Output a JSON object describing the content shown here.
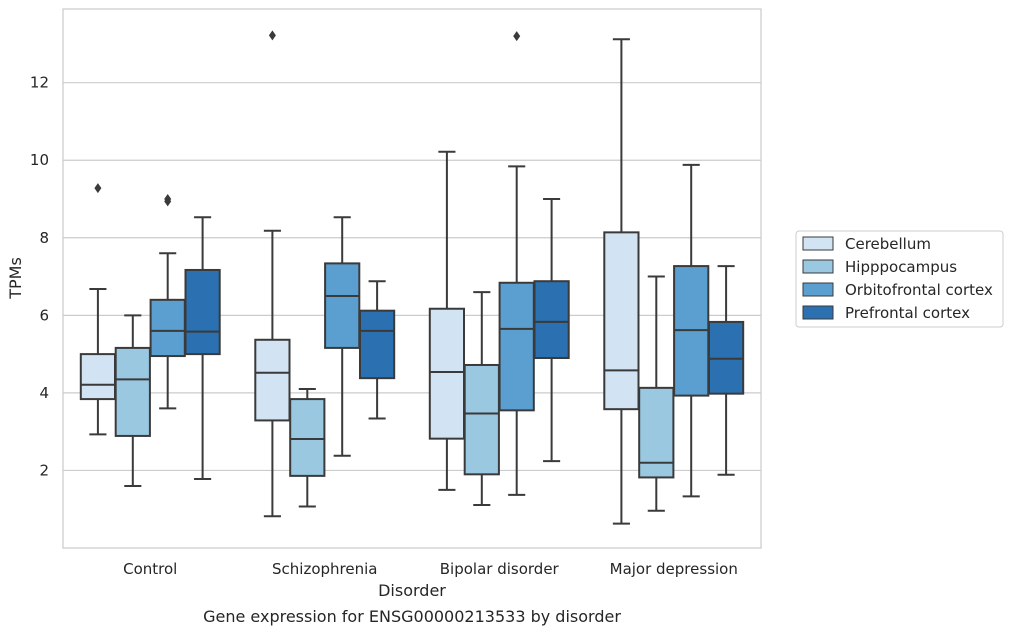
{
  "chart_data": {
    "type": "box",
    "title": "",
    "caption": "Gene expression for ENSG00000213533 by disorder",
    "xlabel": "Disorder",
    "ylabel": "TPMs",
    "ylim": [
      0,
      13.9
    ],
    "yticks": [
      2,
      4,
      6,
      8,
      10,
      12
    ],
    "grid": "horizontal",
    "legend_placement": "right",
    "categories": [
      "Control",
      "Schizophrenia",
      "Bipolar disorder",
      "Major depression"
    ],
    "series": [
      {
        "name": "Cerebellum",
        "color": "#d2e3f3",
        "boxes": [
          {
            "whisker_low": 2.93,
            "q1": 3.84,
            "median": 4.21,
            "q3": 5.0,
            "whisker_high": 6.68,
            "outliers": [
              9.28
            ]
          },
          {
            "whisker_low": 0.82,
            "q1": 3.29,
            "median": 4.52,
            "q3": 5.37,
            "whisker_high": 8.18,
            "outliers": [
              13.22
            ]
          },
          {
            "whisker_low": 1.5,
            "q1": 2.82,
            "median": 4.54,
            "q3": 6.17,
            "whisker_high": 10.22,
            "outliers": []
          },
          {
            "whisker_low": 0.63,
            "q1": 3.58,
            "median": 4.58,
            "q3": 8.14,
            "whisker_high": 13.12,
            "outliers": []
          }
        ]
      },
      {
        "name": "Hipppocampus",
        "color": "#9ac8e0",
        "boxes": [
          {
            "whisker_low": 1.6,
            "q1": 2.89,
            "median": 4.35,
            "q3": 5.16,
            "whisker_high": 6.0,
            "outliers": []
          },
          {
            "whisker_low": 1.07,
            "q1": 1.86,
            "median": 2.81,
            "q3": 3.84,
            "whisker_high": 4.1,
            "outliers": []
          },
          {
            "whisker_low": 1.11,
            "q1": 1.9,
            "median": 3.47,
            "q3": 4.72,
            "whisker_high": 6.6,
            "outliers": []
          },
          {
            "whisker_low": 0.96,
            "q1": 1.82,
            "median": 2.2,
            "q3": 4.13,
            "whisker_high": 7.0,
            "outliers": []
          }
        ]
      },
      {
        "name": "Orbitofrontal cortex",
        "color": "#5a9fcf",
        "boxes": [
          {
            "whisker_low": 3.6,
            "q1": 4.95,
            "median": 5.6,
            "q3": 6.4,
            "whisker_high": 7.6,
            "outliers": [
              8.94,
              9.0
            ]
          },
          {
            "whisker_low": 2.38,
            "q1": 5.16,
            "median": 6.5,
            "q3": 7.34,
            "whisker_high": 8.53,
            "outliers": []
          },
          {
            "whisker_low": 1.37,
            "q1": 3.55,
            "median": 5.65,
            "q3": 6.84,
            "whisker_high": 9.84,
            "outliers": [
              13.2
            ]
          },
          {
            "whisker_low": 1.33,
            "q1": 3.93,
            "median": 5.62,
            "q3": 7.27,
            "whisker_high": 9.88,
            "outliers": []
          }
        ]
      },
      {
        "name": "Prefrontal cortex",
        "color": "#2b70b0",
        "boxes": [
          {
            "whisker_low": 1.78,
            "q1": 5.0,
            "median": 5.58,
            "q3": 7.17,
            "whisker_high": 8.53,
            "outliers": []
          },
          {
            "whisker_low": 3.34,
            "q1": 4.38,
            "median": 5.6,
            "q3": 6.12,
            "whisker_high": 6.88,
            "outliers": []
          },
          {
            "whisker_low": 2.24,
            "q1": 4.9,
            "median": 5.83,
            "q3": 6.88,
            "whisker_high": 9.0,
            "outliers": []
          },
          {
            "whisker_low": 1.89,
            "q1": 3.98,
            "median": 4.88,
            "q3": 5.83,
            "whisker_high": 7.27,
            "outliers": []
          }
        ]
      }
    ]
  }
}
